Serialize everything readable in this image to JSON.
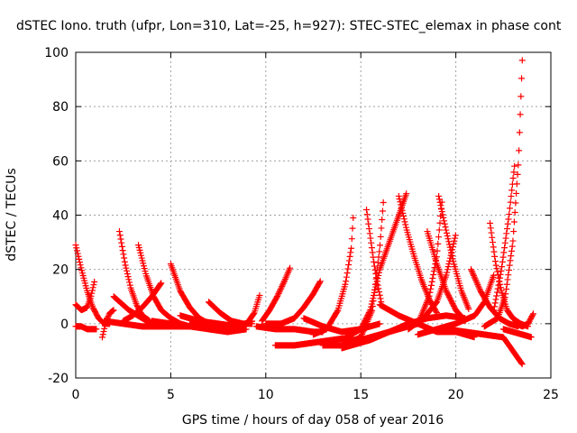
{
  "chart_data": {
    "type": "scatter",
    "title": "dSTEC Iono. truth (ufpr, Lon=310, Lat=-25, h=927): STEC-STEC_elemax in phase cont",
    "xlabel": "GPS time / hours of day 058 of year 2016",
    "ylabel": "dSTEC  / TECUs",
    "xlim": [
      0,
      25
    ],
    "ylim": [
      -20,
      100
    ],
    "x_ticks": [
      "0",
      "5",
      "10",
      "15",
      "20",
      "25"
    ],
    "y_ticks": [
      "-20",
      "0",
      "20",
      "40",
      "60",
      "80",
      "100"
    ],
    "grid": true,
    "marker": "+",
    "color": "#ff0000",
    "series": [
      {
        "x": [
          0.0,
          0.3,
          0.6,
          0.9,
          1.2,
          1.5,
          1.8
        ],
        "y": [
          29,
          20,
          12,
          6,
          2,
          0,
          0
        ]
      },
      {
        "x": [
          0.0,
          0.3,
          0.6,
          0.9,
          1.1
        ],
        "y": [
          -1,
          -1,
          -2,
          -2,
          -2
        ]
      },
      {
        "x": [
          0.0,
          0.3,
          0.6,
          0.8,
          1.0
        ],
        "y": [
          7,
          5,
          6,
          10,
          16
        ]
      },
      {
        "x": [
          1.4,
          1.6,
          1.8,
          2.0
        ],
        "y": [
          -5,
          1,
          4,
          5
        ]
      },
      {
        "x": [
          2.3,
          2.6,
          2.9,
          3.2,
          3.5,
          3.9
        ],
        "y": [
          34,
          22,
          13,
          7,
          3,
          1
        ]
      },
      {
        "x": [
          2.0,
          2.8,
          3.5,
          4.0,
          4.5,
          5.0
        ],
        "y": [
          10,
          5,
          2,
          0,
          0,
          0
        ]
      },
      {
        "x": [
          3.3,
          3.7,
          4.1,
          4.5,
          5.0,
          5.5,
          6.0
        ],
        "y": [
          29,
          18,
          10,
          5,
          2,
          0,
          -1
        ]
      },
      {
        "x": [
          1.5,
          2.5,
          3.5,
          4.5,
          5.5,
          6.5
        ],
        "y": [
          1,
          0,
          -1,
          -1,
          -1,
          -1
        ]
      },
      {
        "x": [
          2.5,
          3.0,
          3.5,
          4.0,
          4.5
        ],
        "y": [
          1,
          3,
          6,
          10,
          15
        ]
      },
      {
        "x": [
          5.0,
          5.5,
          6.0,
          6.5,
          7.0,
          7.5,
          8.0
        ],
        "y": [
          22,
          12,
          6,
          2,
          0,
          -2,
          -2
        ]
      },
      {
        "x": [
          4.0,
          5.0,
          6.0,
          7.0,
          8.0,
          9.0
        ],
        "y": [
          1,
          0,
          -1,
          -2,
          -3,
          -2
        ]
      },
      {
        "x": [
          6.0,
          7.0,
          8.0,
          8.6,
          9.0,
          9.4,
          9.7
        ],
        "y": [
          0,
          -2,
          -3,
          -2,
          0,
          4,
          11
        ]
      },
      {
        "x": [
          7.0,
          7.6,
          8.2,
          8.8,
          9.3
        ],
        "y": [
          8,
          4,
          1,
          0,
          0
        ]
      },
      {
        "x": [
          5.5,
          6.5,
          7.5,
          8.5,
          9.3
        ],
        "y": [
          3,
          1,
          0,
          -1,
          1
        ]
      },
      {
        "x": [
          9.8,
          10.2,
          10.6,
          11.0,
          11.3
        ],
        "y": [
          1,
          5,
          10,
          16,
          21
        ]
      },
      {
        "x": [
          9.5,
          10.5,
          11.5,
          12.5,
          13.0
        ],
        "y": [
          -1,
          -2,
          -2,
          -3,
          -3
        ]
      },
      {
        "x": [
          10.0,
          10.8,
          11.5,
          12.0,
          12.5,
          12.9
        ],
        "y": [
          0,
          0,
          2,
          6,
          11,
          16
        ]
      },
      {
        "x": [
          10.5,
          11.5,
          12.5,
          13.5,
          14.5
        ],
        "y": [
          -8,
          -8,
          -7,
          -6,
          -5
        ]
      },
      {
        "x": [
          12.5,
          13.2,
          13.8,
          14.2,
          14.5,
          14.6
        ],
        "y": [
          -4,
          -2,
          5,
          15,
          28,
          39
        ]
      },
      {
        "x": [
          12.0,
          13.0,
          14.0,
          15.0,
          16.0
        ],
        "y": [
          2,
          -1,
          -3,
          -2,
          0
        ]
      },
      {
        "x": [
          13.0,
          14.0,
          15.0,
          15.6,
          16.0,
          16.2
        ],
        "y": [
          -8,
          -8,
          -5,
          5,
          28,
          46
        ]
      },
      {
        "x": [
          14.0,
          15.0,
          15.5,
          16.0,
          16.5,
          17.0,
          17.4
        ],
        "y": [
          -6,
          -2,
          5,
          20,
          30,
          40,
          48
        ]
      },
      {
        "x": [
          15.3,
          15.5,
          15.7,
          15.9,
          16.1
        ],
        "y": [
          42,
          32,
          22,
          14,
          7
        ]
      },
      {
        "x": [
          14.0,
          15.5,
          16.5,
          17.5,
          18.5,
          19.5,
          20.5
        ],
        "y": [
          -9,
          -6,
          -3,
          0,
          2,
          3,
          2
        ]
      },
      {
        "x": [
          17.0,
          17.4,
          17.8,
          18.2,
          18.6,
          19.0
        ],
        "y": [
          47,
          35,
          25,
          16,
          9,
          4
        ]
      },
      {
        "x": [
          15.0,
          16.0,
          17.0,
          18.0,
          18.6,
          19.0,
          19.3
        ],
        "y": [
          -6,
          -4,
          -2,
          0,
          10,
          25,
          47
        ]
      },
      {
        "x": [
          16.0,
          17.0,
          18.0,
          19.0,
          20.0,
          21.0
        ],
        "y": [
          7,
          3,
          0,
          -3,
          -3,
          -5
        ]
      },
      {
        "x": [
          17.5,
          18.3,
          19.0,
          19.5,
          20.0
        ],
        "y": [
          -2,
          2,
          8,
          18,
          33
        ]
      },
      {
        "x": [
          19.1,
          19.5,
          19.9,
          20.3,
          20.7
        ],
        "y": [
          47,
          34,
          22,
          12,
          5
        ]
      },
      {
        "x": [
          18.5,
          19.0,
          19.5,
          20.0,
          20.5
        ],
        "y": [
          34,
          22,
          12,
          5,
          1
        ]
      },
      {
        "x": [
          18.0,
          19.0,
          20.0,
          21.0,
          21.5,
          22.0
        ],
        "y": [
          -4,
          -2,
          0,
          3,
          8,
          18
        ]
      },
      {
        "x": [
          19.5,
          20.5,
          21.5,
          22.5,
          23.0,
          23.5
        ],
        "y": [
          -2,
          -3,
          -4,
          -5,
          -10,
          -15
        ]
      },
      {
        "x": [
          20.8,
          21.3,
          21.8,
          22.3,
          22.8,
          23.3
        ],
        "y": [
          20,
          12,
          6,
          2,
          0,
          -1
        ]
      },
      {
        "x": [
          21.8,
          22.1,
          22.4,
          22.7,
          23.0,
          23.4,
          23.8
        ],
        "y": [
          37,
          22,
          12,
          5,
          2,
          0,
          -1
        ]
      },
      {
        "x": [
          21.5,
          22.2,
          22.6,
          23.0,
          23.3,
          23.5
        ],
        "y": [
          -1,
          2,
          10,
          30,
          60,
          98
        ]
      },
      {
        "x": [
          22.0,
          22.4,
          22.8,
          23.1
        ],
        "y": [
          5,
          20,
          40,
          59
        ]
      },
      {
        "x": [
          22.5,
          23.0,
          23.5,
          24.0
        ],
        "y": [
          -2,
          -3,
          -4,
          -5
        ]
      },
      {
        "x": [
          23.2,
          23.5,
          23.8,
          24.1
        ],
        "y": [
          0,
          -1,
          0,
          4
        ]
      }
    ]
  }
}
